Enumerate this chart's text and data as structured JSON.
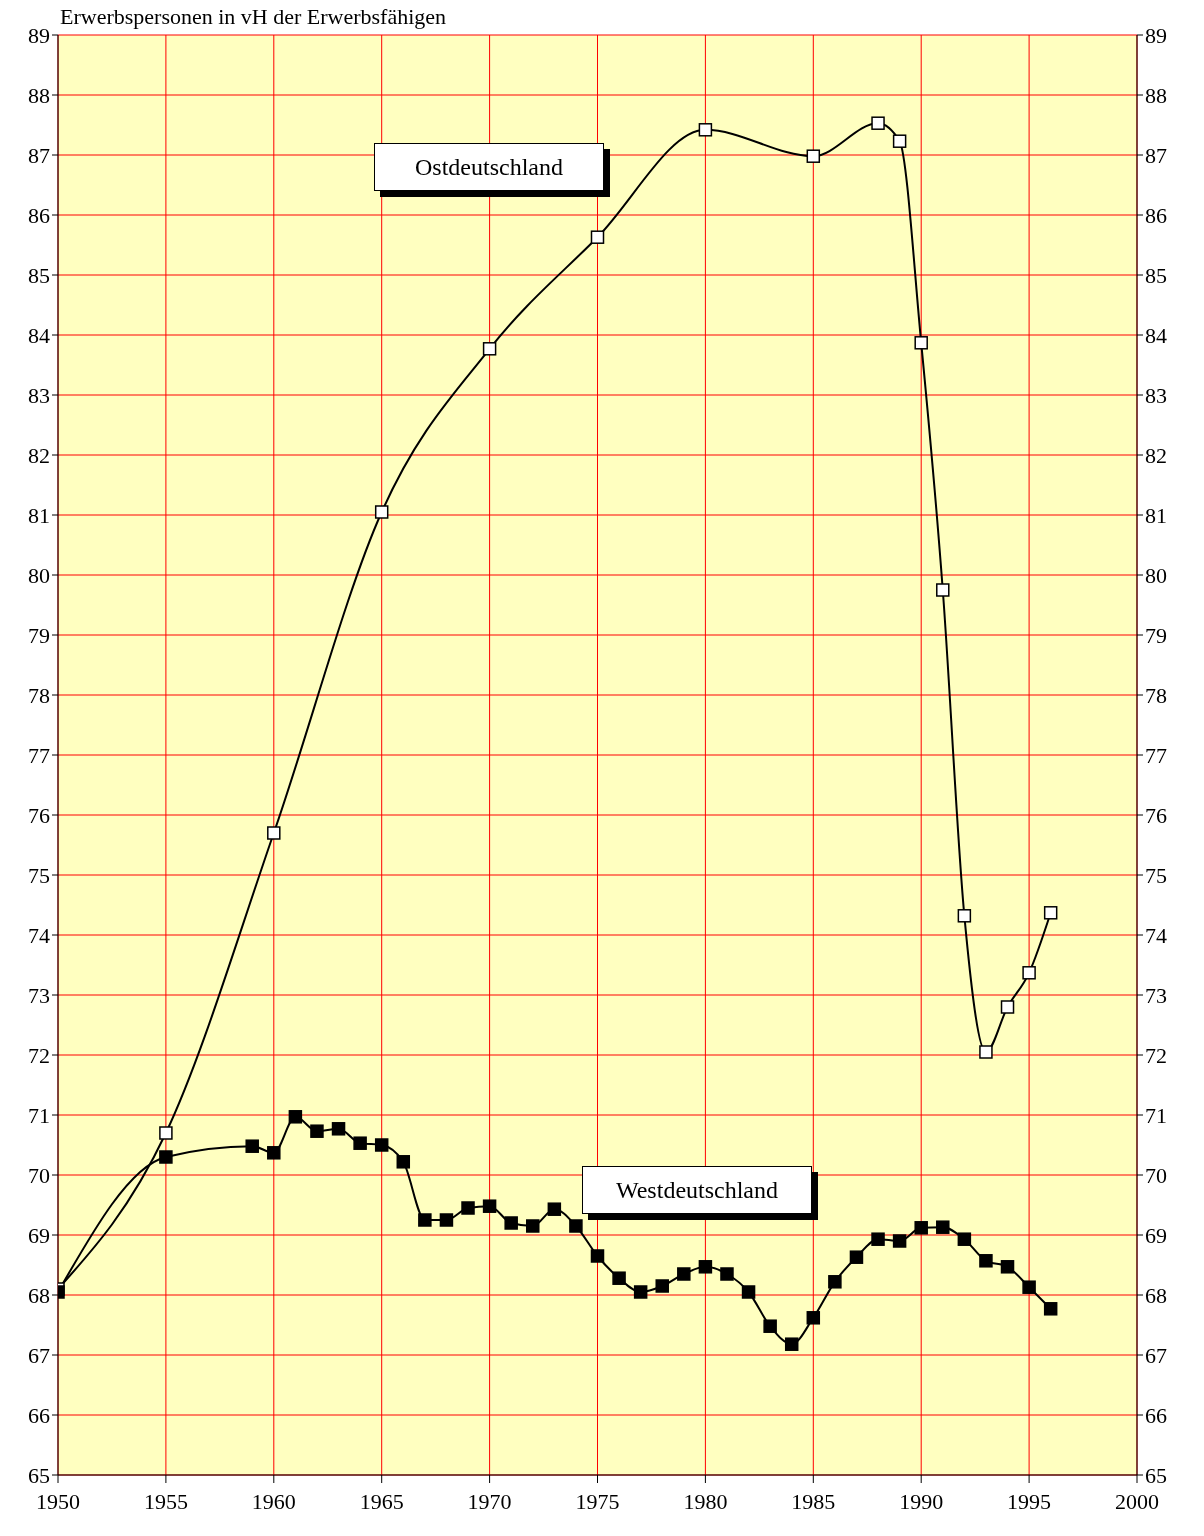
{
  "chart_data": {
    "type": "line",
    "ylabel": "Erwerbspersonen in vH der Erwerbsfähigen",
    "xlim": [
      1950,
      2000
    ],
    "xticks": [
      1950,
      1955,
      1960,
      1965,
      1970,
      1975,
      1980,
      1985,
      1990,
      1995,
      2000
    ],
    "ylim": [
      65,
      89
    ],
    "yticks": [
      65,
      66,
      67,
      68,
      69,
      70,
      71,
      72,
      73,
      74,
      75,
      76,
      77,
      78,
      79,
      80,
      81,
      82,
      83,
      84,
      85,
      86,
      87,
      88,
      89
    ],
    "y2lim": [
      65,
      89
    ],
    "y2ticks": [
      65,
      66,
      67,
      68,
      69,
      70,
      71,
      72,
      73,
      74,
      75,
      76,
      77,
      78,
      79,
      80,
      81,
      82,
      83,
      84,
      85,
      86,
      87,
      88,
      89
    ],
    "grid": true,
    "marker": "square",
    "series": [
      {
        "name": "Ostdeutschland",
        "color": "#000000",
        "x": [
          1950,
          1955,
          1960,
          1965,
          1970,
          1975,
          1980,
          1985,
          1988,
          1989,
          1990,
          1991,
          1992,
          1993,
          1994,
          1995,
          1996
        ],
        "values": [
          68.1,
          70.7,
          75.7,
          81.05,
          83.77,
          85.63,
          87.42,
          86.98,
          87.53,
          87.23,
          83.87,
          79.75,
          74.32,
          72.05,
          72.8,
          73.37,
          74.37
        ]
      },
      {
        "name": "Westdeutschland",
        "color": "#000000",
        "x": [
          1950,
          1955,
          1959,
          1960,
          1961,
          1962,
          1963,
          1964,
          1965,
          1966,
          1967,
          1968,
          1969,
          1970,
          1971,
          1972,
          1973,
          1974,
          1975,
          1976,
          1977,
          1978,
          1979,
          1980,
          1981,
          1982,
          1983,
          1984,
          1985,
          1986,
          1987,
          1988,
          1989,
          1990,
          1991,
          1992,
          1993,
          1994,
          1995,
          1996
        ],
        "values": [
          68.05,
          70.3,
          70.48,
          70.37,
          70.97,
          70.73,
          70.77,
          70.53,
          70.5,
          70.22,
          69.25,
          69.25,
          69.45,
          69.48,
          69.2,
          69.15,
          69.43,
          69.15,
          68.65,
          68.28,
          68.05,
          68.15,
          68.35,
          68.47,
          68.35,
          68.05,
          67.48,
          67.18,
          67.62,
          68.22,
          68.63,
          68.93,
          68.9,
          69.12,
          69.13,
          68.93,
          68.57,
          68.47,
          68.13,
          67.77
        ]
      }
    ]
  }
}
